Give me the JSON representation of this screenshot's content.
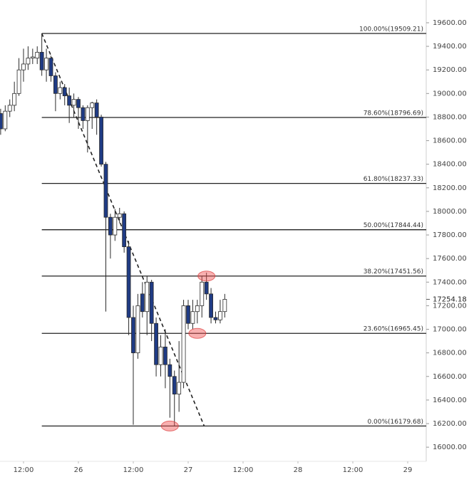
{
  "chart_data": {
    "type": "candlestick",
    "up_color": "#ffffff",
    "down_color": "#1f3b84",
    "outline_color": "#2b2b2b",
    "series": {
      "x": [
        7,
        8,
        9,
        10,
        11,
        12,
        13,
        14,
        15,
        16,
        17,
        18,
        19,
        20,
        21,
        22,
        23,
        24,
        25,
        26,
        27,
        28,
        29,
        30,
        31,
        32,
        33,
        34,
        35,
        36,
        37,
        38,
        39,
        40,
        41,
        42,
        43,
        44,
        45,
        46,
        47,
        48,
        49,
        50,
        51,
        52,
        53,
        54,
        55,
        56
      ],
      "open": [
        18830,
        18700,
        18850,
        18900,
        19000,
        19200,
        19250,
        19300,
        19300,
        19350,
        19200,
        19300,
        19150,
        19000,
        19050,
        18980,
        18900,
        18950,
        18880,
        18770,
        18880,
        18920,
        18800,
        18400,
        17950,
        17800,
        17950,
        17980,
        17700,
        17100,
        16800,
        17300,
        17150,
        17400,
        17050,
        16700,
        16850,
        16700,
        16600,
        16450,
        16550,
        17200,
        17050,
        17150,
        17200,
        17400,
        17300,
        17100,
        17080,
        17150
      ],
      "high": [
        18870,
        18900,
        18950,
        19100,
        19300,
        19380,
        19400,
        19380,
        19400,
        19509.21,
        19380,
        19320,
        19180,
        19100,
        19080,
        19050,
        19000,
        18970,
        18900,
        18900,
        18930,
        18950,
        18820,
        18420,
        17980,
        18020,
        18030,
        18000,
        17750,
        17200,
        17300,
        17400,
        17450,
        17420,
        17100,
        16950,
        17000,
        16750,
        16650,
        16900,
        17250,
        17250,
        17250,
        17250,
        17450,
        17480,
        17350,
        17150,
        17250,
        17300
      ],
      "low": [
        18650,
        18680,
        18800,
        18850,
        18980,
        19100,
        19200,
        19250,
        19250,
        19150,
        19100,
        19100,
        18850,
        18950,
        18900,
        18750,
        18800,
        18700,
        18700,
        18500,
        18700,
        18650,
        18380,
        17150,
        17600,
        17750,
        17900,
        17650,
        16950,
        16190,
        16750,
        17100,
        16950,
        16900,
        16600,
        16600,
        16500,
        16250,
        16179.68,
        16300,
        16500,
        17000,
        17000,
        17050,
        17100,
        17250,
        17050,
        17050,
        17050,
        17100
      ],
      "close": [
        18700,
        18850,
        18900,
        19000,
        19200,
        19250,
        19300,
        19310,
        19350,
        19200,
        19300,
        19150,
        19000,
        19050,
        18980,
        18900,
        18950,
        18880,
        18770,
        18880,
        18920,
        18800,
        18400,
        17950,
        17800,
        17950,
        17980,
        17700,
        17100,
        16800,
        17200,
        17150,
        17400,
        17050,
        16700,
        16850,
        16700,
        16600,
        16450,
        16550,
        17200,
        17050,
        17150,
        17200,
        17400,
        17300,
        17100,
        17080,
        17150,
        17254.18
      ]
    },
    "fib_levels": [
      {
        "value": 19509.21,
        "label": "100.00%(19509.21)"
      },
      {
        "value": 18796.69,
        "label": "78.60%(18796.69)"
      },
      {
        "value": 18237.33,
        "label": "61.80%(18237.33)"
      },
      {
        "value": 17844.44,
        "label": "50.00%(17844.44)"
      },
      {
        "value": 17451.56,
        "label": "38.20%(17451.56)"
      },
      {
        "value": 16965.45,
        "label": "23.60%(16965.45)"
      },
      {
        "value": 16179.68,
        "label": "0.00%(16179.68)"
      }
    ],
    "trendline": {
      "x": [
        16,
        51.5
      ],
      "y": [
        19509.21,
        16179.68
      ]
    },
    "highlights": {
      "x": [
        52,
        50,
        44
      ],
      "y": [
        17451.56,
        16965.45,
        16179.68
      ]
    },
    "last_price": 17254.18,
    "xlim": [
      6.86,
      100.05
    ],
    "ylim": [
      15880,
      19793
    ],
    "xticks": [
      {
        "value": 12,
        "label": "12:00"
      },
      {
        "value": 24,
        "label": "26"
      },
      {
        "value": 36,
        "label": "12:00"
      },
      {
        "value": 48,
        "label": "27"
      },
      {
        "value": 60,
        "label": "12:00"
      },
      {
        "value": 72,
        "label": "28"
      },
      {
        "value": 84,
        "label": "12:00"
      },
      {
        "value": 96,
        "label": "29"
      }
    ],
    "yticks": [
      {
        "value": 16000,
        "label": "16000.00"
      },
      {
        "value": 16200,
        "label": "16200.00"
      },
      {
        "value": 16400,
        "label": "16400.00"
      },
      {
        "value": 16600,
        "label": "16600.00"
      },
      {
        "value": 16800,
        "label": "16800.00"
      },
      {
        "value": 17000,
        "label": "17000.00"
      },
      {
        "value": 17200,
        "label": "17200.00"
      },
      {
        "value": 17400,
        "label": "17400.00"
      },
      {
        "value": 17600,
        "label": "17600.00"
      },
      {
        "value": 17800,
        "label": "17800.00"
      },
      {
        "value": 18000,
        "label": "18000.00"
      },
      {
        "value": 18200,
        "label": "18200.00"
      },
      {
        "value": 18400,
        "label": "18400.00"
      },
      {
        "value": 18600,
        "label": "18600.00"
      },
      {
        "value": 18800,
        "label": "18800.00"
      },
      {
        "value": 19000,
        "label": "19000.00"
      },
      {
        "value": 19200,
        "label": "19200.00"
      },
      {
        "value": 19400,
        "label": "19400.00"
      },
      {
        "value": 19600,
        "label": "19600.00"
      }
    ]
  }
}
